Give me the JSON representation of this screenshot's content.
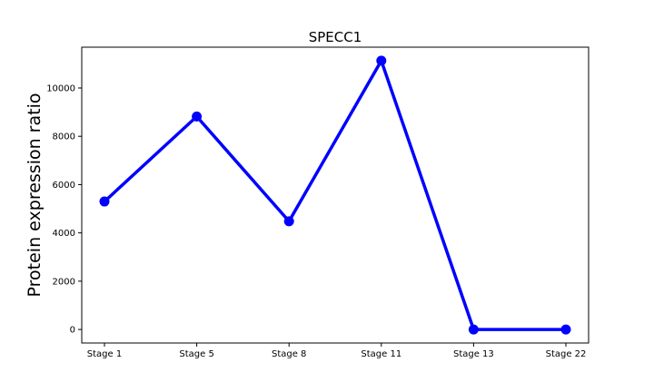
{
  "chart_data": {
    "type": "line",
    "title": "SPECC1",
    "xlabel": "",
    "ylabel": "Protein expression ratio",
    "categories": [
      "Stage 1",
      "Stage 5",
      "Stage 8",
      "Stage 11",
      "Stage 13",
      "Stage 22"
    ],
    "series": [
      {
        "values": [
          5300,
          8820,
          4480,
          11130,
          0,
          0
        ],
        "color": "#0000ff",
        "marker": "circle"
      }
    ],
    "yticks": [
      0,
      2000,
      4000,
      6000,
      8000,
      10000
    ],
    "ylim": [
      -560,
      11690
    ],
    "grid": false,
    "legend": "none"
  }
}
